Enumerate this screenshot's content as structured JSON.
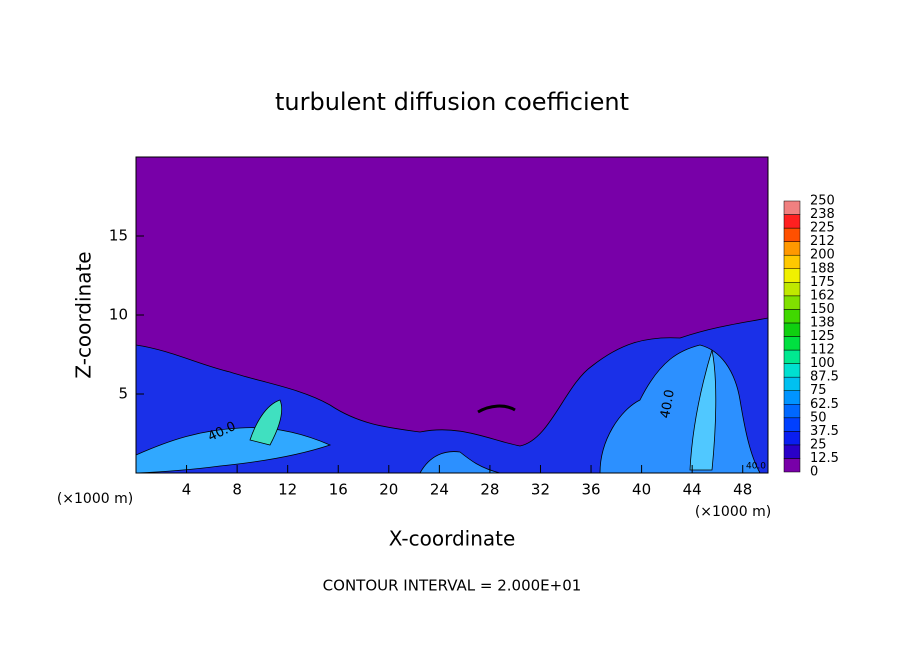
{
  "chart_data": {
    "type": "contour",
    "title": "turbulent diffusion coefficient",
    "xlabel": "X-coordinate",
    "ylabel": "Z-coordinate",
    "x_unit": "(×1000 m)",
    "xlim": [
      0,
      50
    ],
    "xticks": [
      4,
      8,
      12,
      16,
      20,
      24,
      28,
      32,
      36,
      40,
      44,
      48
    ],
    "ylim": [
      0,
      20
    ],
    "yticks": [
      5,
      10,
      15
    ],
    "colorbar": {
      "levels": [
        0,
        12.5,
        25,
        37.5,
        50,
        62.5,
        75,
        87.5,
        100,
        112,
        125,
        138,
        150,
        162,
        175,
        188,
        200,
        212,
        225,
        238,
        250
      ],
      "colors": [
        "#7800a8",
        "#2a00c8",
        "#0a1ef0",
        "#0040ff",
        "#0068ff",
        "#0094ff",
        "#00c0f0",
        "#00e0d0",
        "#00e890",
        "#00e040",
        "#10d010",
        "#40d800",
        "#80e000",
        "#c0e800",
        "#f0f000",
        "#ffc800",
        "#ff9800",
        "#ff5000",
        "#ff2020",
        "#f08080"
      ]
    },
    "contour_labels": [
      "40.0",
      "40.0",
      "40.0"
    ],
    "footer": "CONTOUR INTERVAL = 2.000E+01"
  }
}
